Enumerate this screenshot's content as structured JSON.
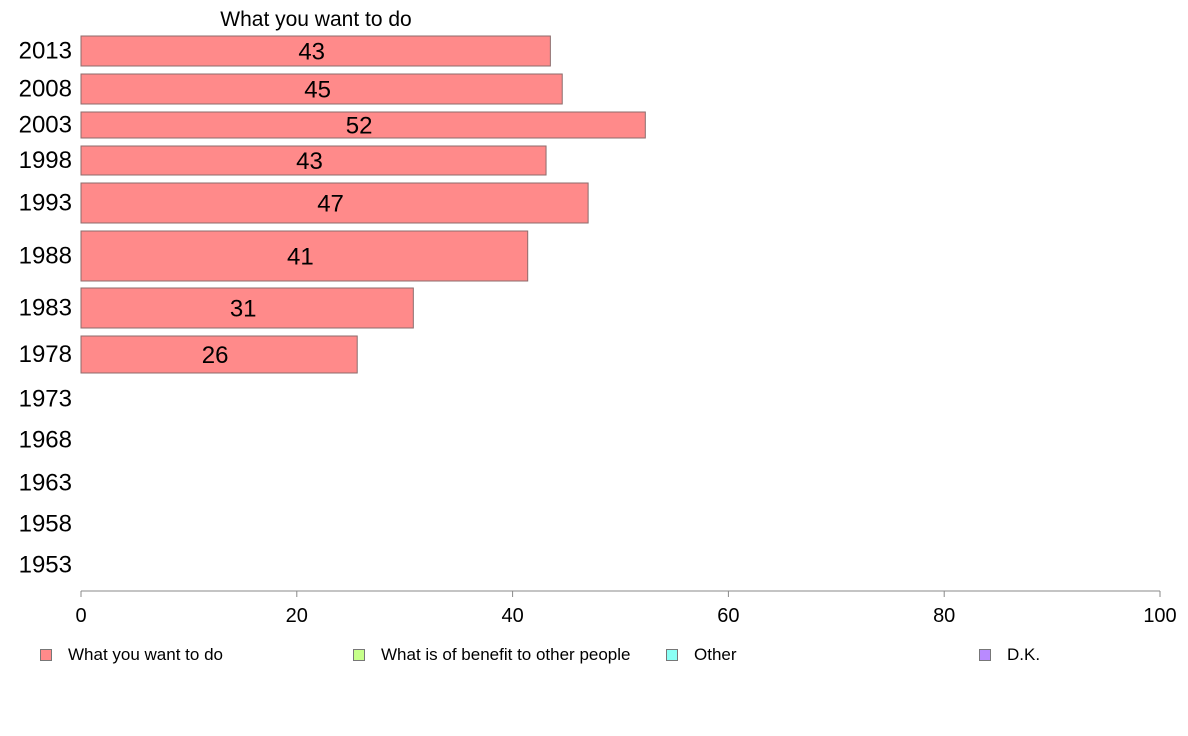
{
  "chart_data": {
    "type": "bar",
    "orientation": "horizontal",
    "title": "What you want to do",
    "categories": [
      "2013",
      "2008",
      "2003",
      "1998",
      "1993",
      "1988",
      "1983",
      "1978",
      "1973",
      "1968",
      "1963",
      "1958",
      "1953"
    ],
    "series": [
      {
        "name": "What you want to do",
        "color": "#ff8a8a",
        "values": [
          43.5,
          44.6,
          52.3,
          43.1,
          47.0,
          41.4,
          30.8,
          25.6,
          null,
          null,
          null,
          null,
          null
        ],
        "labels": [
          "43",
          "45",
          "52",
          "43",
          "47",
          "41",
          "31",
          "26",
          "",
          "",
          "",
          "",
          ""
        ]
      }
    ],
    "xlim": [
      0,
      100
    ],
    "xticks": [
      "0",
      "20",
      "40",
      "60",
      "80",
      "100"
    ],
    "grid": false,
    "legend": {
      "placement": "bottom",
      "items": [
        {
          "label": "What you want to do",
          "color": "#ff8a8a"
        },
        {
          "label": "What is of benefit to other people",
          "color": "#c6ff8a"
        },
        {
          "label": "Other",
          "color": "#8afff5"
        },
        {
          "label": "D.K.",
          "color": "#b98aff"
        }
      ]
    }
  }
}
